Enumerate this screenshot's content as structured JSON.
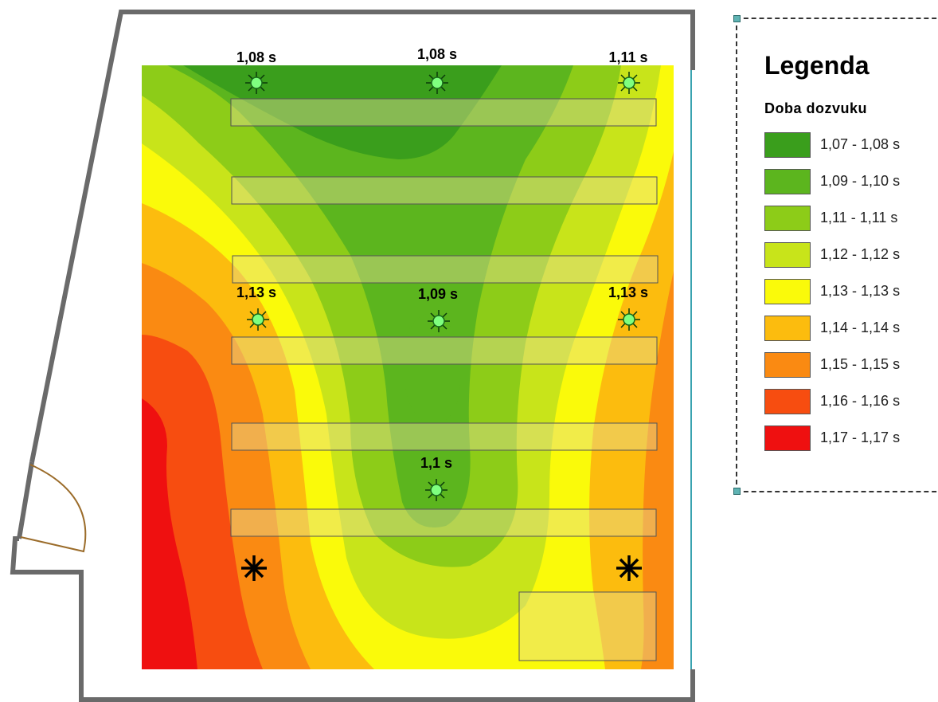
{
  "map": {
    "measurement_points": [
      {
        "label": "1,08 s"
      },
      {
        "label": "1,08 s"
      },
      {
        "label": "1,11 s"
      },
      {
        "label": "1,13 s"
      },
      {
        "label": "1,09 s"
      },
      {
        "label": "1,13 s"
      },
      {
        "label": "1,1 s"
      }
    ],
    "source_markers": [
      "asterisk-icon",
      "asterisk-icon"
    ]
  },
  "legend": {
    "title": "Legenda",
    "subtitle": "Doba dozvuku",
    "items": [
      {
        "label": "1,07 - 1,08 s",
        "color": "#3a9e1c"
      },
      {
        "label": "1,09 - 1,10 s",
        "color": "#5cb51e"
      },
      {
        "label": "1,11 - 1,11 s",
        "color": "#8dcc18"
      },
      {
        "label": "1,12 - 1,12 s",
        "color": "#c8e41a"
      },
      {
        "label": "1,13 - 1,13 s",
        "color": "#fafa0a"
      },
      {
        "label": "1,14 - 1,14 s",
        "color": "#fcbc0e"
      },
      {
        "label": "1,15 - 1,15 s",
        "color": "#fa8a12"
      },
      {
        "label": "1,16 - 1,16 s",
        "color": "#f74d10"
      },
      {
        "label": "1,17 - 1,17 s",
        "color": "#ef1010"
      }
    ]
  }
}
